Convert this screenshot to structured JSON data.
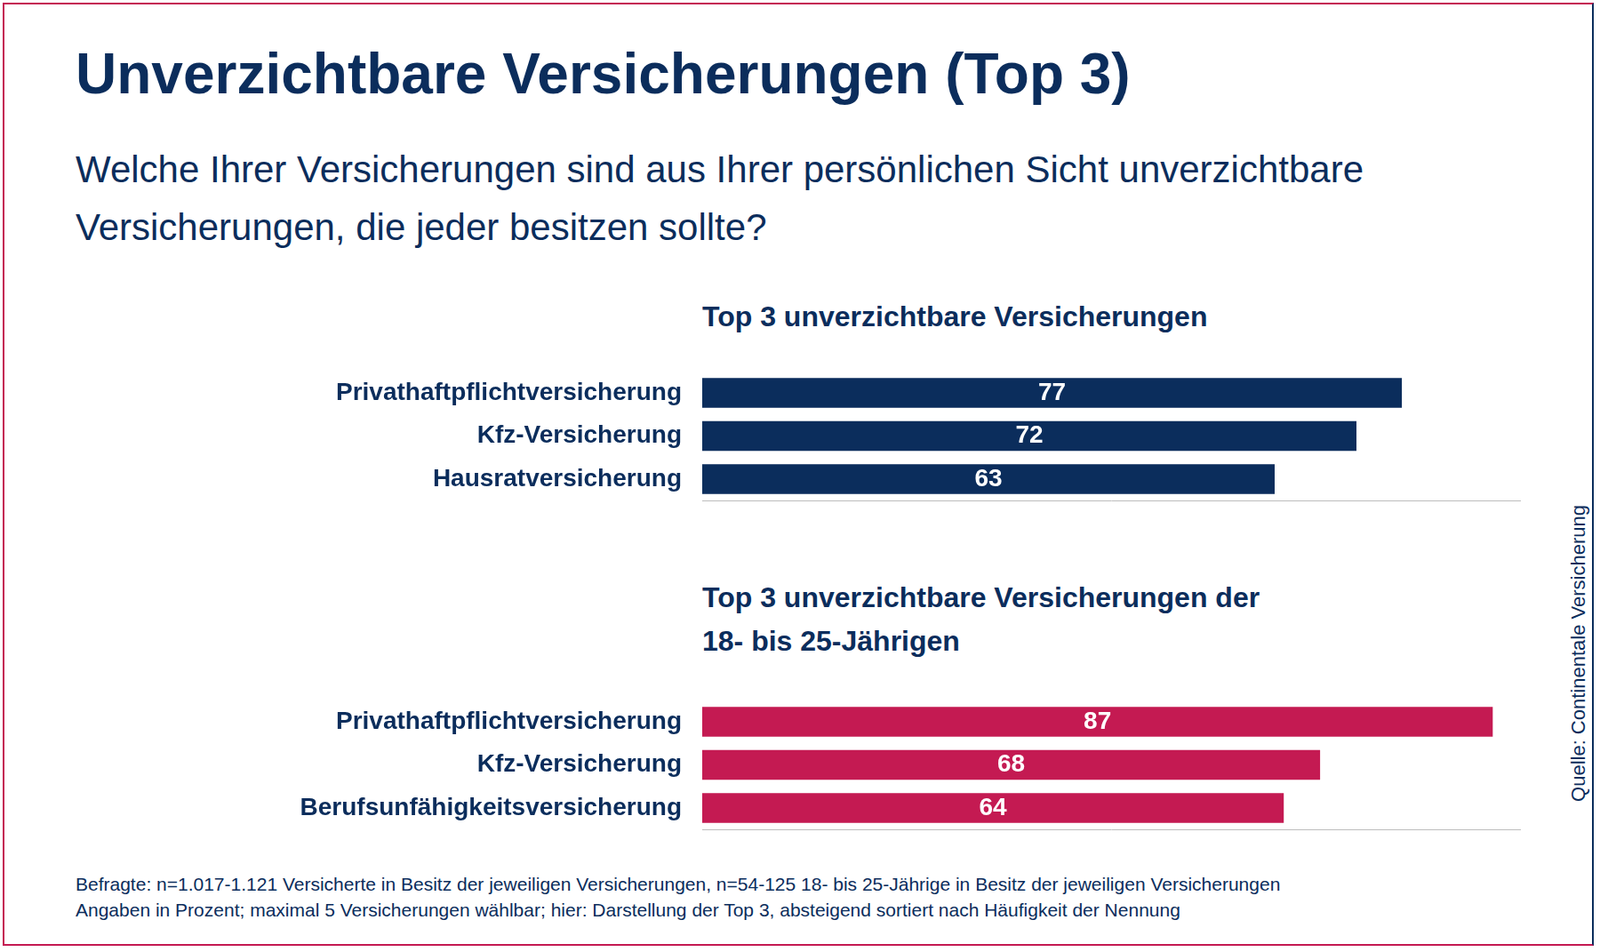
{
  "title": "Unverzichtbare Versicherungen (Top 3)",
  "subtitle": "Welche Ihrer Versicherungen sind aus Ihrer persönlichen Sicht unverzichtbare Versicherungen, die jeder besitzen sollte?",
  "notes": [
    "Befragte: n=1.017-1.121 Versicherte in Besitz der jeweiligen Versicherungen, n=54-125 18- bis 25-Jährige in Besitz der jeweiligen Versicherungen",
    "Angaben in Prozent; maximal 5 Versicherungen wählbar; hier: Darstellung der Top 3, absteigend sortiert nach Häufigkeit der Nennung"
  ],
  "source": "Quelle: Continentale Versicherung",
  "chart_data": [
    {
      "type": "bar",
      "title": "Top 3 unverzichtbare Versicherungen",
      "categories": [
        "Privathaftpflichtversicherung",
        "Kfz-Versicherung",
        "Hausratversicherung"
      ],
      "values": [
        77,
        72,
        63
      ],
      "color": "#0b2d5c",
      "orientation": "horizontal",
      "xlim": [
        0,
        90
      ],
      "grid": false,
      "data_labels": true,
      "tick_labels": "y"
    },
    {
      "type": "bar",
      "title": "Top 3 unverzichtbare Versicherungen der 18- bis 25-Jährigen",
      "categories": [
        "Privathaftpflichtversicherung",
        "Kfz-Versicherung",
        "Berufsunfähigkeitsversicherung"
      ],
      "values": [
        87,
        68,
        64
      ],
      "color": "#c41a52",
      "orientation": "horizontal",
      "xlim": [
        0,
        90
      ],
      "grid": false,
      "data_labels": true,
      "tick_labels": "y"
    }
  ]
}
